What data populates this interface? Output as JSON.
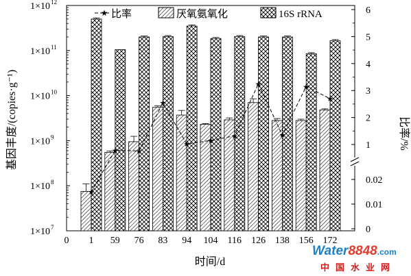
{
  "chart_data": {
    "type": "bar",
    "categories": [
      "1",
      "59",
      "76",
      "83",
      "94",
      "104",
      "116",
      "126",
      "138",
      "156",
      "172"
    ],
    "x_zero_tick": "0",
    "xlabel": "时间/d",
    "ylabel": "基因丰度/(copies·g⁻¹)",
    "y2label": "比率/%",
    "ylim": [
      10000000.0,
      1000000000000.0
    ],
    "yscale": "log",
    "y_ticks": [
      {
        "base": "1×10",
        "exp": "7",
        "value": 10000000.0
      },
      {
        "base": "1×10",
        "exp": "8",
        "value": 100000000.0
      },
      {
        "base": "1×10",
        "exp": "9",
        "value": 1000000000.0
      },
      {
        "base": "1×10",
        "exp": "10",
        "value": 10000000000.0
      },
      {
        "base": "1×10",
        "exp": "11",
        "value": 100000000000.0
      },
      {
        "base": "1×10",
        "exp": "12",
        "value": 1000000000000.0
      }
    ],
    "y2_upper_ticks": [
      "1",
      "2",
      "3",
      "4",
      "5",
      "6"
    ],
    "y2_upper_range": [
      1,
      6
    ],
    "y2_lower_ticks": [
      "0",
      "0.01",
      "0.02"
    ],
    "y2_lower_range": [
      0,
      0.025
    ],
    "legend_position": "top",
    "series": [
      {
        "name": "厌氧氨氧化",
        "kind": "bar",
        "pattern": "dense-diagonal",
        "values": [
          75000000.0,
          550000000.0,
          950000000.0,
          5500000000.0,
          3700000000.0,
          2300000000.0,
          2900000000.0,
          7000000000.0,
          2800000000.0,
          2800000000.0,
          4800000000.0
        ],
        "errors": [
          35000000.0,
          40000000.0,
          300000000.0,
          400000000.0,
          1000000000.0,
          100000000.0,
          300000000.0,
          1500000000.0,
          300000000.0,
          200000000.0,
          300000000.0
        ]
      },
      {
        "name": "16S rRNA",
        "kind": "bar",
        "pattern": "crosshatch",
        "values": [
          500000000000.0,
          105000000000.0,
          200000000000.0,
          205000000000.0,
          350000000000.0,
          185000000000.0,
          205000000000.0,
          200000000000.0,
          200000000000.0,
          85000000000.0,
          165000000000.0
        ],
        "errors": [
          30000000000.0,
          0,
          10000000000.0,
          10000000000.0,
          20000000000.0,
          10000000000.0,
          10000000000.0,
          10000000000.0,
          10000000000.0,
          5000000000.0,
          10000000000.0
        ]
      },
      {
        "name": "比率",
        "kind": "line",
        "axis": "right",
        "values": [
          0.015,
          0.75,
          0.72,
          2.55,
          1.02,
          1.15,
          1.32,
          3.25,
          1.35,
          3.15,
          2.7
        ]
      }
    ]
  },
  "watermark": {
    "top_left": "Water",
    "top_num": "8848",
    "top_domain": ".com",
    "bottom": "中国水业网"
  }
}
